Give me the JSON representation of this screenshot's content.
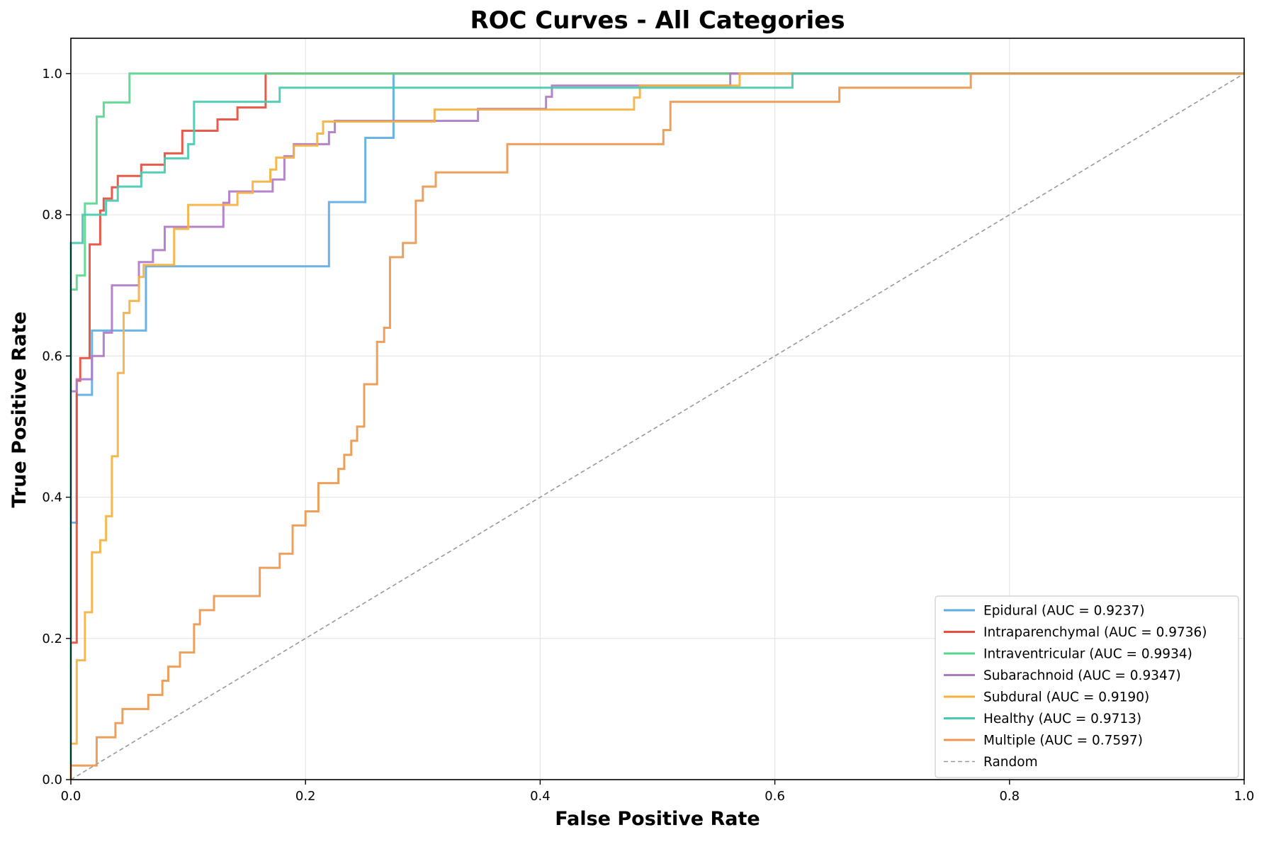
{
  "chart_data": {
    "type": "line",
    "title": "ROC Curves - All Categories",
    "xlabel": "False Positive Rate",
    "ylabel": "True Positive Rate",
    "xlim": [
      0,
      1
    ],
    "ylim": [
      0,
      1.05
    ],
    "xticks": [
      "0.0",
      "0.2",
      "0.4",
      "0.6",
      "0.8",
      "1.0"
    ],
    "yticks": [
      "0.0",
      "0.2",
      "0.4",
      "0.6",
      "0.8",
      "1.0"
    ],
    "grid": true,
    "legend_position": "lower-right",
    "series": [
      {
        "name": "Epidural (AUC = 0.9237)",
        "color": "#5DADE2",
        "x": [
          0,
          0,
          0.005,
          0.005,
          0.018,
          0.018,
          0.064,
          0.064,
          0.22,
          0.22,
          0.251,
          0.251,
          0.275,
          0.275,
          1
        ],
        "y": [
          0,
          0.364,
          0.364,
          0.545,
          0.545,
          0.636,
          0.636,
          0.727,
          0.727,
          0.818,
          0.818,
          0.909,
          0.909,
          1,
          1
        ]
      },
      {
        "name": "Intraparenchymal (AUC = 0.9736)",
        "color": "#E74C3C",
        "x": [
          0,
          0,
          0.005,
          0.005,
          0.008,
          0.008,
          0.016,
          0.016,
          0.025,
          0.025,
          0.028,
          0.028,
          0.035,
          0.035,
          0.04,
          0.04,
          0.058,
          0.058,
          0.06,
          0.06,
          0.078,
          0.078,
          0.08,
          0.08,
          0.095,
          0.095,
          0.125,
          0.125,
          0.142,
          0.142,
          0.166,
          0.166,
          1
        ],
        "y": [
          0,
          0.194,
          0.194,
          0.565,
          0.565,
          0.597,
          0.597,
          0.758,
          0.758,
          0.806,
          0.806,
          0.823,
          0.823,
          0.839,
          0.839,
          0.855,
          0.855,
          0.855,
          0.855,
          0.871,
          0.871,
          0.871,
          0.871,
          0.887,
          0.887,
          0.919,
          0.919,
          0.935,
          0.935,
          0.952,
          0.952,
          1,
          1
        ]
      },
      {
        "name": "Intraventricular (AUC = 0.9934)",
        "color": "#58D68D",
        "x": [
          0,
          0,
          0.005,
          0.005,
          0.012,
          0.012,
          0.022,
          0.022,
          0.028,
          0.028,
          0.05,
          0.05,
          1
        ],
        "y": [
          0,
          0.694,
          0.694,
          0.714,
          0.714,
          0.816,
          0.816,
          0.939,
          0.939,
          0.959,
          0.959,
          1,
          1
        ]
      },
      {
        "name": "Subarachnoid (AUC = 0.9347)",
        "color": "#AF7AC5",
        "x": [
          0,
          0,
          0.005,
          0.005,
          0.018,
          0.018,
          0.028,
          0.028,
          0.035,
          0.035,
          0.058,
          0.058,
          0.07,
          0.07,
          0.08,
          0.08,
          0.13,
          0.13,
          0.135,
          0.135,
          0.15,
          0.15,
          0.172,
          0.172,
          0.182,
          0.182,
          0.19,
          0.19,
          0.22,
          0.22,
          0.225,
          0.225,
          0.23,
          0.23,
          0.29,
          0.29,
          0.347,
          0.347,
          0.405,
          0.405,
          0.41,
          0.41,
          0.465,
          0.465,
          0.562,
          0.562,
          1
        ],
        "y": [
          0,
          0.55,
          0.55,
          0.567,
          0.567,
          0.6,
          0.6,
          0.633,
          0.633,
          0.7,
          0.7,
          0.733,
          0.733,
          0.75,
          0.75,
          0.783,
          0.783,
          0.817,
          0.817,
          0.833,
          0.833,
          0.833,
          0.833,
          0.85,
          0.85,
          0.883,
          0.883,
          0.9,
          0.9,
          0.917,
          0.917,
          0.933,
          0.933,
          0.933,
          0.933,
          0.933,
          0.933,
          0.95,
          0.95,
          0.967,
          0.967,
          0.983,
          0.983,
          0.983,
          0.983,
          1,
          1
        ]
      },
      {
        "name": "Subdural (AUC = 0.9190)",
        "color": "#F5B041",
        "x": [
          0,
          0,
          0.005,
          0.005,
          0.012,
          0.012,
          0.018,
          0.018,
          0.025,
          0.025,
          0.03,
          0.03,
          0.035,
          0.035,
          0.04,
          0.04,
          0.045,
          0.045,
          0.05,
          0.05,
          0.058,
          0.058,
          0.062,
          0.062,
          0.088,
          0.088,
          0.1,
          0.1,
          0.142,
          0.142,
          0.155,
          0.155,
          0.17,
          0.17,
          0.175,
          0.175,
          0.19,
          0.19,
          0.21,
          0.21,
          0.215,
          0.215,
          0.31,
          0.31,
          0.48,
          0.48,
          0.485,
          0.485,
          0.57,
          0.57,
          1
        ],
        "y": [
          0,
          0.051,
          0.051,
          0.169,
          0.169,
          0.237,
          0.237,
          0.322,
          0.322,
          0.339,
          0.339,
          0.373,
          0.373,
          0.458,
          0.458,
          0.576,
          0.576,
          0.661,
          0.661,
          0.678,
          0.678,
          0.712,
          0.712,
          0.729,
          0.729,
          0.78,
          0.78,
          0.814,
          0.814,
          0.831,
          0.831,
          0.847,
          0.847,
          0.864,
          0.864,
          0.881,
          0.881,
          0.898,
          0.898,
          0.915,
          0.915,
          0.932,
          0.932,
          0.949,
          0.949,
          0.966,
          0.966,
          0.983,
          0.983,
          1,
          1
        ]
      },
      {
        "name": "Healthy (AUC = 0.9713)",
        "color": "#48C9B0",
        "x": [
          0,
          0,
          0.01,
          0.01,
          0.03,
          0.03,
          0.04,
          0.04,
          0.06,
          0.06,
          0.08,
          0.08,
          0.1,
          0.1,
          0.105,
          0.105,
          0.178,
          0.178,
          0.413,
          0.413,
          0.615,
          0.615,
          1
        ],
        "y": [
          0,
          0.76,
          0.76,
          0.8,
          0.8,
          0.82,
          0.82,
          0.84,
          0.84,
          0.86,
          0.86,
          0.88,
          0.88,
          0.9,
          0.9,
          0.96,
          0.96,
          0.98,
          0.98,
          0.98,
          0.98,
          1,
          1
        ]
      },
      {
        "name": "Multiple (AUC = 0.7597)",
        "color": "#EB984E",
        "x": [
          0,
          0,
          0.022,
          0.022,
          0.038,
          0.038,
          0.044,
          0.044,
          0.066,
          0.066,
          0.078,
          0.078,
          0.083,
          0.083,
          0.093,
          0.093,
          0.105,
          0.105,
          0.11,
          0.11,
          0.122,
          0.122,
          0.161,
          0.161,
          0.178,
          0.178,
          0.189,
          0.189,
          0.2,
          0.2,
          0.211,
          0.211,
          0.228,
          0.228,
          0.233,
          0.233,
          0.239,
          0.239,
          0.244,
          0.244,
          0.25,
          0.25,
          0.261,
          0.261,
          0.267,
          0.267,
          0.272,
          0.272,
          0.283,
          0.283,
          0.294,
          0.294,
          0.3,
          0.3,
          0.311,
          0.311,
          0.372,
          0.372,
          0.505,
          0.505,
          0.511,
          0.511,
          0.655,
          0.655,
          0.767,
          0.767,
          1
        ],
        "y": [
          0,
          0.02,
          0.02,
          0.06,
          0.06,
          0.08,
          0.08,
          0.1,
          0.1,
          0.12,
          0.12,
          0.14,
          0.14,
          0.16,
          0.16,
          0.18,
          0.18,
          0.22,
          0.22,
          0.24,
          0.24,
          0.26,
          0.26,
          0.3,
          0.3,
          0.32,
          0.32,
          0.36,
          0.36,
          0.38,
          0.38,
          0.42,
          0.42,
          0.44,
          0.44,
          0.46,
          0.46,
          0.48,
          0.48,
          0.5,
          0.5,
          0.56,
          0.56,
          0.62,
          0.62,
          0.64,
          0.64,
          0.74,
          0.74,
          0.76,
          0.76,
          0.82,
          0.82,
          0.84,
          0.84,
          0.86,
          0.86,
          0.9,
          0.9,
          0.92,
          0.92,
          0.96,
          0.96,
          0.98,
          0.98,
          1,
          1
        ]
      }
    ],
    "reference_line": {
      "name": "Random",
      "color": "#999999",
      "x": [
        0,
        1
      ],
      "y": [
        0,
        1
      ]
    }
  }
}
